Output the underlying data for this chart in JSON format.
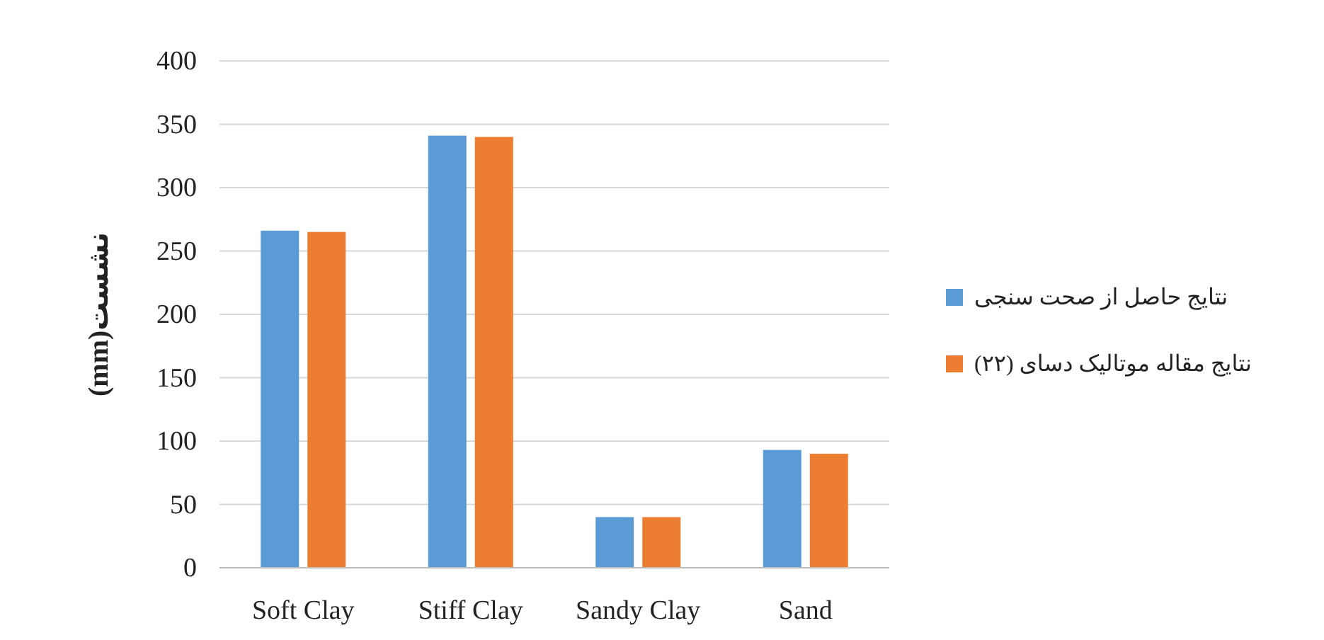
{
  "chart_data": {
    "type": "bar",
    "ylabel": "نشست(mm)",
    "categories": [
      "Soft Clay",
      "Stiff Clay",
      "Sandy Clay",
      "Sand"
    ],
    "series": [
      {
        "name": "نتایج حاصل از صحت سنجی",
        "color": "#5b9bd5",
        "values": [
          266,
          341,
          40,
          93
        ]
      },
      {
        "name": "نتایج مقاله موتالیک دسای (۲۲)",
        "color": "#ed7d31",
        "values": [
          265,
          340,
          40,
          90
        ]
      }
    ],
    "ylim": [
      0,
      400
    ],
    "yticks": [
      0,
      50,
      100,
      150,
      200,
      250,
      300,
      350,
      400
    ],
    "grid": "y",
    "legend": "right"
  }
}
